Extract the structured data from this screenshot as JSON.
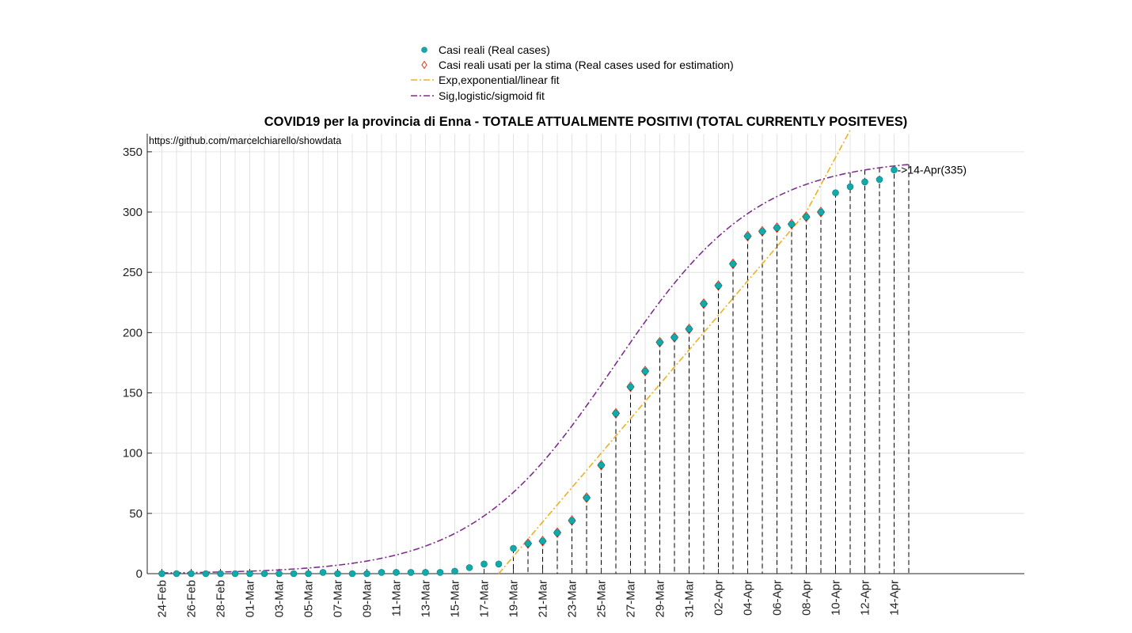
{
  "chart_data": {
    "type": "scatter",
    "title": "COVID19 per la provincia di Enna - TOTALE ATTUALMENTE POSITIVI (TOTAL CURRENTLY POSITEVES)",
    "source_text": "https://github.com/marcelchiarello/showdata",
    "xlabel": "",
    "ylabel": "",
    "ylim": [
      0,
      365
    ],
    "yticks": [
      0,
      50,
      100,
      150,
      200,
      250,
      300,
      350
    ],
    "grid": true,
    "legend_position": "top-center",
    "x": [
      "24-Feb",
      "25-Feb",
      "26-Feb",
      "27-Feb",
      "28-Feb",
      "29-Feb",
      "01-Mar",
      "02-Mar",
      "03-Mar",
      "04-Mar",
      "05-Mar",
      "06-Mar",
      "07-Mar",
      "08-Mar",
      "09-Mar",
      "10-Mar",
      "11-Mar",
      "12-Mar",
      "13-Mar",
      "14-Mar",
      "15-Mar",
      "16-Mar",
      "17-Mar",
      "18-Mar",
      "19-Mar",
      "20-Mar",
      "21-Mar",
      "22-Mar",
      "23-Mar",
      "24-Mar",
      "25-Mar",
      "26-Mar",
      "27-Mar",
      "28-Mar",
      "29-Mar",
      "30-Mar",
      "31-Mar",
      "01-Apr",
      "02-Apr",
      "03-Apr",
      "04-Apr",
      "05-Apr",
      "06-Apr",
      "07-Apr",
      "08-Apr",
      "09-Apr",
      "10-Apr",
      "11-Apr",
      "12-Apr",
      "13-Apr",
      "14-Apr"
    ],
    "xtick_labels": [
      "24-Feb",
      "26-Feb",
      "28-Feb",
      "01-Mar",
      "03-Mar",
      "05-Mar",
      "07-Mar",
      "09-Mar",
      "11-Mar",
      "13-Mar",
      "15-Mar",
      "17-Mar",
      "19-Mar",
      "21-Mar",
      "23-Mar",
      "25-Mar",
      "27-Mar",
      "29-Mar",
      "31-Mar",
      "02-Apr",
      "04-Apr",
      "06-Apr",
      "08-Apr",
      "10-Apr",
      "12-Apr",
      "14-Apr"
    ],
    "series": [
      {
        "name": "Casi reali (Real cases)",
        "marker": "circle",
        "color": "#11a9a9",
        "values": [
          0,
          0,
          0,
          0,
          0,
          0,
          0,
          0,
          0,
          0,
          0,
          1,
          0,
          0,
          0,
          1,
          1,
          1,
          1,
          1,
          2,
          5,
          8,
          8,
          21,
          25,
          27,
          34,
          44,
          63,
          90,
          133,
          155,
          168,
          192,
          196,
          203,
          224,
          239,
          257,
          280,
          284,
          287,
          290,
          296,
          300,
          316,
          321,
          325,
          327,
          335
        ]
      },
      {
        "name": "Casi reali usati per la stima (Real cases used for estimation)",
        "marker": "diamond",
        "color": "#e8331c",
        "x_start": "20-Mar",
        "values": [
          25,
          27,
          34,
          44,
          63,
          90,
          133,
          155,
          168,
          192,
          196,
          203,
          224,
          239,
          257,
          280,
          284,
          287,
          290,
          296,
          300
        ]
      },
      {
        "name": "Exp,exponential/linear fit",
        "line": "dash-dot",
        "color": "#edb120",
        "points": [
          [
            "18-Mar",
            0
          ],
          [
            "08-Apr",
            300
          ],
          [
            "11-Apr",
            368
          ]
        ]
      },
      {
        "name": "Sig,logistic/sigmoid fit",
        "line": "dash-dot",
        "color": "#7e2f8e",
        "model": "logistic",
        "start": "24-Feb",
        "end": "15-Apr"
      }
    ],
    "annotations": [
      {
        "x": "14-Apr",
        "y": 335,
        "text": "->14-Apr(335)"
      }
    ]
  }
}
